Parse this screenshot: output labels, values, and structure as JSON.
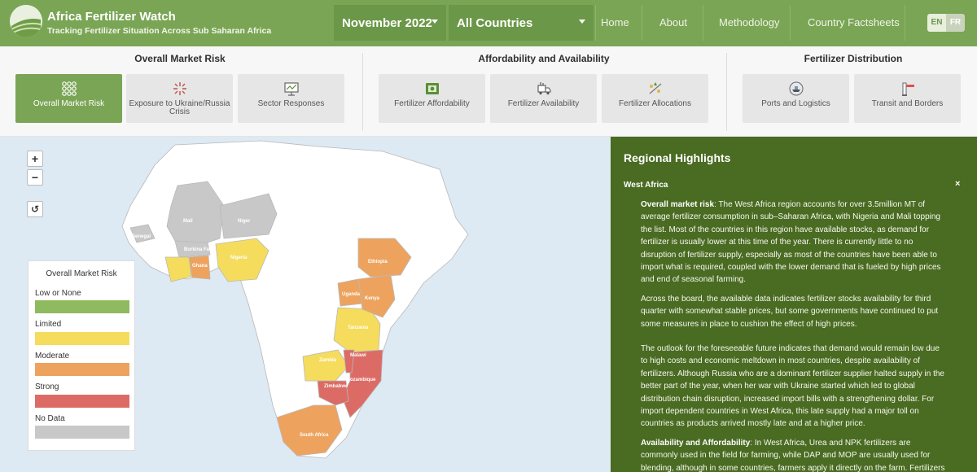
{
  "header": {
    "title": "Africa Fertilizer Watch",
    "subtitle": "Tracking Fertilizer Situation Across Sub Saharan Africa",
    "month_select": "November 2022",
    "country_select": "All Countries",
    "nav": [
      "Home",
      "About",
      "Methodology",
      "Country Factsheets"
    ],
    "lang_en": "EN",
    "lang_fr": "FR"
  },
  "categories": {
    "groups": [
      {
        "title": "Overall Market Risk"
      },
      {
        "title": "Affordability and Availability"
      },
      {
        "title": "Fertilizer Distribution"
      }
    ],
    "tiles": [
      {
        "label": "Overall Market Risk",
        "icon": "circles-grid-icon"
      },
      {
        "label": "Exposure to Ukraine/Russia Crisis",
        "icon": "crisis-icon"
      },
      {
        "label": "Sector Responses",
        "icon": "presentation-board-icon"
      },
      {
        "label": "Fertilizer Affordability",
        "icon": "money-icon"
      },
      {
        "label": "Fertilizer Availability",
        "icon": "truck-icon"
      },
      {
        "label": "Fertilizer Allocations",
        "icon": "allocation-icon"
      },
      {
        "label": "Ports and Logistics",
        "icon": "ship-icon"
      },
      {
        "label": "Transit and Borders",
        "icon": "border-barrier-icon"
      }
    ]
  },
  "map": {
    "zoom_in": "+",
    "zoom_out": "−",
    "reset": "↺",
    "country_labels": [
      "Mali",
      "Niger",
      "Senegal",
      "Burkina Faso",
      "Ghana",
      "Nigeria",
      "Ethiopia",
      "Uganda",
      "Kenya",
      "Tanzania",
      "Zambia",
      "Malawi",
      "Mozambique",
      "Zimbabwe",
      "South Africa"
    ],
    "legend": {
      "title": "Overall Market Risk",
      "items": [
        {
          "label": "Low or None",
          "color": "#8fba5f"
        },
        {
          "label": "Limited",
          "color": "#f5dc5c"
        },
        {
          "label": "Moderate",
          "color": "#eda35e"
        },
        {
          "label": "Strong",
          "color": "#dc6b65"
        },
        {
          "label": "No Data",
          "color": "#c8c8c8"
        }
      ]
    }
  },
  "panel": {
    "title": "Regional Highlights",
    "region": "West Africa",
    "close": "×",
    "p1_lead": "Overall market risk",
    "p1_text": ": The West Africa region accounts for over 3.5million MT of average fertilizer consumption in sub–Saharan Africa, with Nigeria and Mali topping the list. Most of the countries in this region have available stocks, as demand for fertilizer is usually lower at this time of the year. There is currently little to no disruption of fertilizer supply, especially as most of the countries have been able to import what is required, coupled with the lower demand that is fueled by high prices and end of seasonal farming.",
    "p2": "Across the board, the available data indicates fertilizer stocks availability for third quarter with somewhat stable prices, but some governments have continued to put some measures in place to cushion the effect of high prices.",
    "p3": "The outlook for the foreseeable future indicates that demand would remain low due to high costs and economic meltdown in most countries, despite availability of fertilizers. Although Russia who are a dominant fertilizer supplier halted supply in the better part of the year, when her war with Ukraine started which led to global distribution chain disruption, increased import bills with a strengthening dollar. For import dependent countries in West Africa, this late supply had a major toll on countries as products arrived mostly late and at a higher price.",
    "p4_lead": "Availability and Affordability",
    "p4_text": ": In West Africa, Urea and NPK fertilizers are commonly used in the field for farming, while DAP and MOP are usually used for blending, although in some countries, farmers apply it directly on the farm. Fertilizers"
  }
}
